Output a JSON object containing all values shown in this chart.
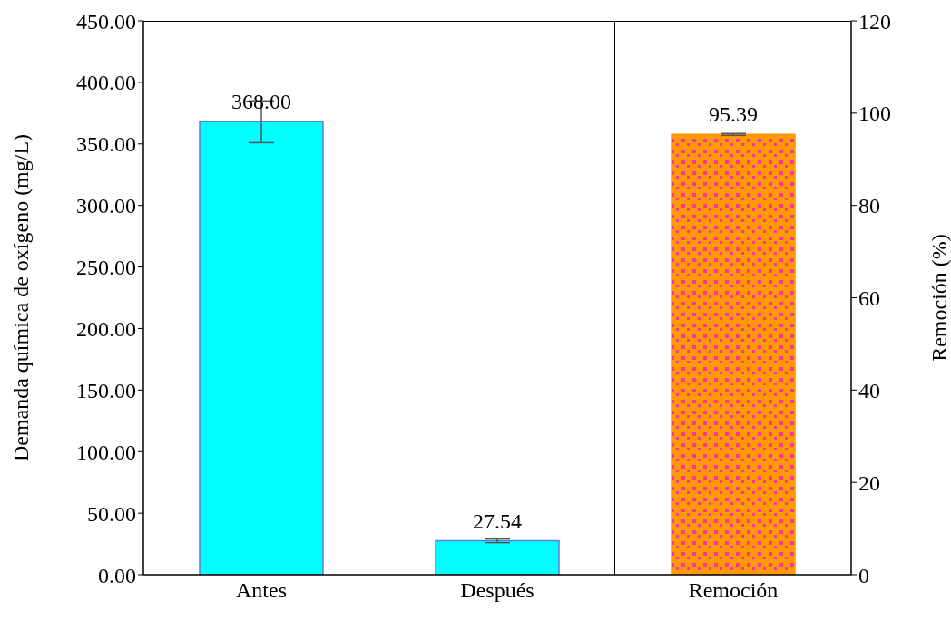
{
  "chart_data": [
    {
      "type": "bar",
      "categories": [
        "Antes",
        "Después"
      ],
      "ylabel": "Demanda química de oxígeno (mg/L)",
      "ylim": [
        0,
        450
      ],
      "yticks": [
        {
          "value": 0,
          "label": "0.00"
        },
        {
          "value": 50,
          "label": "50.00"
        },
        {
          "value": 100,
          "label": "100.00"
        },
        {
          "value": 150,
          "label": "150.00"
        },
        {
          "value": 200,
          "label": "200.00"
        },
        {
          "value": 250,
          "label": "250.00"
        },
        {
          "value": 300,
          "label": "300.00"
        },
        {
          "value": 350,
          "label": "350.00"
        },
        {
          "value": 400,
          "label": "400.00"
        },
        {
          "value": 450,
          "label": "450.00"
        }
      ],
      "grid": false,
      "legend": false,
      "series": [
        {
          "color": "#00ffff",
          "values": [
            368,
            27.54
          ],
          "errors": [
            17,
            1.5
          ],
          "value_labels": [
            "368.00",
            "27.54"
          ]
        }
      ]
    },
    {
      "type": "bar",
      "categories": [
        "Remoción"
      ],
      "y2label": "Remoción (%)",
      "y2lim": [
        0,
        120
      ],
      "y2ticks": [
        0,
        20,
        40,
        60,
        80,
        100,
        120
      ],
      "grid": false,
      "legend": false,
      "series": [
        {
          "axis": "y2",
          "color": "#ff9900",
          "values": [
            95.39
          ],
          "errors": [
            0.2
          ],
          "value_labels": [
            "95.39"
          ]
        }
      ]
    }
  ]
}
